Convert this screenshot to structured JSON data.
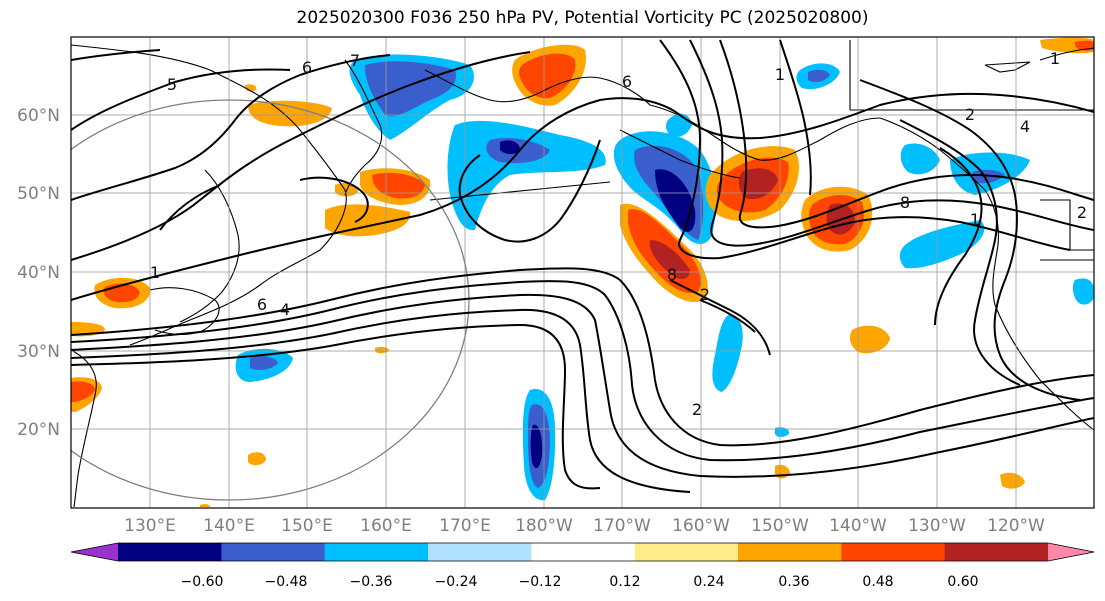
{
  "title": "2025020300 F036 250 hPa PV, Potential Vorticity PC (2025020800)",
  "lat_labels": [
    "60°N",
    "50°N",
    "40°N",
    "30°N",
    "20°N"
  ],
  "lon_labels": [
    "130°E",
    "140°E",
    "150°E",
    "160°E",
    "170°E",
    "180°W",
    "170°W",
    "160°W",
    "150°W",
    "140°W",
    "130°W",
    "120°W"
  ],
  "colorbar": {
    "colors": [
      "#9933cc",
      "#000080",
      "#3a5fcd",
      "#00bfff",
      "#b0e2ff",
      "#ffffff",
      "#ffec8b",
      "#ffa500",
      "#ff4500",
      "#b22222",
      "#ff88aa"
    ],
    "ticks": [
      "−0.60",
      "−0.48",
      "−0.36",
      "−0.24",
      "−0.12",
      "0.12",
      "0.24",
      "0.36",
      "0.48",
      "0.60"
    ]
  },
  "contour_labels": [
    "5",
    "6",
    "7",
    "6",
    "1",
    "1",
    "2",
    "4",
    "8",
    "1",
    "2",
    "6",
    "4",
    "2",
    "8",
    "2",
    "1"
  ]
}
